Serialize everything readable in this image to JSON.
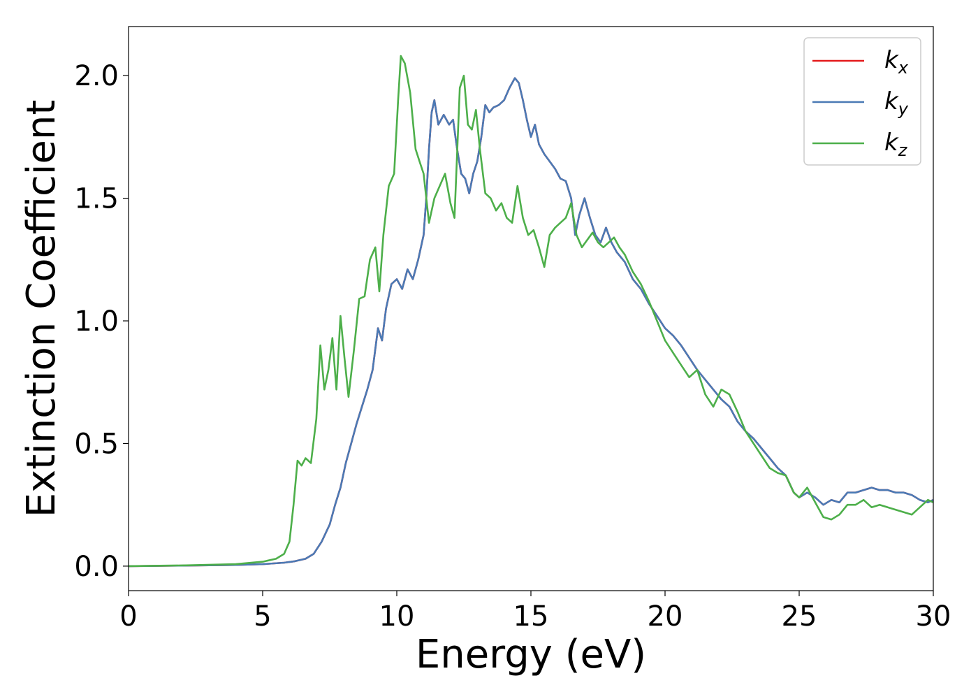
{
  "chart_data": {
    "type": "line",
    "xlabel": "Energy (eV)",
    "ylabel": "Extinction Coefficient",
    "xlim": [
      0,
      30
    ],
    "ylim": [
      -0.1,
      2.2
    ],
    "xticks": [
      "0",
      "5",
      "10",
      "15",
      "20",
      "25",
      "30"
    ],
    "yticks": [
      "0.0",
      "0.5",
      "1.0",
      "1.5",
      "2.0"
    ],
    "grid": false,
    "legend_position": "top-right",
    "series": [
      {
        "name": "k_x",
        "label_main": "k",
        "label_sub": "x",
        "color": "#e41a1c",
        "x": [
          0,
          2,
          4,
          5,
          5.8,
          6.2,
          6.6,
          6.9,
          7.2,
          7.5,
          7.7,
          7.9,
          8.1,
          8.3,
          8.5,
          8.7,
          8.9,
          9.1,
          9.3,
          9.45,
          9.6,
          9.8,
          10.0,
          10.2,
          10.4,
          10.6,
          10.8,
          11.0,
          11.1,
          11.2,
          11.3,
          11.4,
          11.55,
          11.75,
          11.95,
          12.1,
          12.25,
          12.4,
          12.55,
          12.7,
          12.85,
          13.0,
          13.15,
          13.3,
          13.45,
          13.6,
          13.8,
          14.0,
          14.2,
          14.4,
          14.55,
          14.7,
          14.85,
          15.0,
          15.15,
          15.3,
          15.5,
          15.7,
          15.9,
          16.1,
          16.3,
          16.5,
          16.65,
          16.8,
          17.0,
          17.2,
          17.4,
          17.6,
          17.8,
          18.0,
          18.2,
          18.5,
          18.8,
          19.1,
          19.4,
          19.7,
          20.0,
          20.3,
          20.6,
          20.9,
          21.2,
          21.5,
          21.8,
          22.1,
          22.4,
          22.7,
          23.0,
          23.3,
          23.6,
          23.9,
          24.2,
          24.5,
          24.8,
          25.0,
          25.3,
          25.6,
          25.9,
          26.2,
          26.5,
          26.8,
          27.1,
          27.4,
          27.7,
          28.0,
          28.3,
          28.6,
          28.9,
          29.2,
          29.5,
          29.8,
          30.0
        ],
        "y": [
          0.0,
          0.002,
          0.005,
          0.008,
          0.014,
          0.02,
          0.03,
          0.05,
          0.1,
          0.17,
          0.25,
          0.32,
          0.42,
          0.5,
          0.58,
          0.65,
          0.72,
          0.8,
          0.97,
          0.92,
          1.05,
          1.15,
          1.17,
          1.13,
          1.21,
          1.17,
          1.25,
          1.35,
          1.5,
          1.7,
          1.85,
          1.9,
          1.8,
          1.84,
          1.8,
          1.82,
          1.7,
          1.6,
          1.58,
          1.52,
          1.6,
          1.65,
          1.75,
          1.88,
          1.85,
          1.87,
          1.88,
          1.9,
          1.95,
          1.99,
          1.97,
          1.9,
          1.82,
          1.75,
          1.8,
          1.72,
          1.68,
          1.65,
          1.62,
          1.58,
          1.57,
          1.5,
          1.35,
          1.43,
          1.5,
          1.42,
          1.35,
          1.32,
          1.38,
          1.32,
          1.28,
          1.24,
          1.17,
          1.13,
          1.07,
          1.02,
          0.97,
          0.94,
          0.9,
          0.85,
          0.8,
          0.76,
          0.72,
          0.68,
          0.65,
          0.59,
          0.55,
          0.52,
          0.48,
          0.44,
          0.4,
          0.37,
          0.3,
          0.28,
          0.3,
          0.28,
          0.25,
          0.27,
          0.26,
          0.3,
          0.3,
          0.31,
          0.32,
          0.31,
          0.31,
          0.3,
          0.3,
          0.29,
          0.27,
          0.26,
          0.27
        ]
      },
      {
        "name": "k_y",
        "label_main": "k",
        "label_sub": "y",
        "color": "#4a7ab5",
        "x": [
          0,
          2,
          4,
          5,
          5.8,
          6.2,
          6.6,
          6.9,
          7.2,
          7.5,
          7.7,
          7.9,
          8.1,
          8.3,
          8.5,
          8.7,
          8.9,
          9.1,
          9.3,
          9.45,
          9.6,
          9.8,
          10.0,
          10.2,
          10.4,
          10.6,
          10.8,
          11.0,
          11.1,
          11.2,
          11.3,
          11.4,
          11.55,
          11.75,
          11.95,
          12.1,
          12.25,
          12.4,
          12.55,
          12.7,
          12.85,
          13.0,
          13.15,
          13.3,
          13.45,
          13.6,
          13.8,
          14.0,
          14.2,
          14.4,
          14.55,
          14.7,
          14.85,
          15.0,
          15.15,
          15.3,
          15.5,
          15.7,
          15.9,
          16.1,
          16.3,
          16.5,
          16.65,
          16.8,
          17.0,
          17.2,
          17.4,
          17.6,
          17.8,
          18.0,
          18.2,
          18.5,
          18.8,
          19.1,
          19.4,
          19.7,
          20.0,
          20.3,
          20.6,
          20.9,
          21.2,
          21.5,
          21.8,
          22.1,
          22.4,
          22.7,
          23.0,
          23.3,
          23.6,
          23.9,
          24.2,
          24.5,
          24.8,
          25.0,
          25.3,
          25.6,
          25.9,
          26.2,
          26.5,
          26.8,
          27.1,
          27.4,
          27.7,
          28.0,
          28.3,
          28.6,
          28.9,
          29.2,
          29.5,
          29.8,
          30.0
        ],
        "y": [
          0.0,
          0.002,
          0.005,
          0.008,
          0.014,
          0.02,
          0.03,
          0.05,
          0.1,
          0.17,
          0.25,
          0.32,
          0.42,
          0.5,
          0.58,
          0.65,
          0.72,
          0.8,
          0.97,
          0.92,
          1.05,
          1.15,
          1.17,
          1.13,
          1.21,
          1.17,
          1.25,
          1.35,
          1.5,
          1.7,
          1.85,
          1.9,
          1.8,
          1.84,
          1.8,
          1.82,
          1.7,
          1.6,
          1.58,
          1.52,
          1.6,
          1.65,
          1.75,
          1.88,
          1.85,
          1.87,
          1.88,
          1.9,
          1.95,
          1.99,
          1.97,
          1.9,
          1.82,
          1.75,
          1.8,
          1.72,
          1.68,
          1.65,
          1.62,
          1.58,
          1.57,
          1.5,
          1.35,
          1.43,
          1.5,
          1.42,
          1.35,
          1.32,
          1.38,
          1.32,
          1.28,
          1.24,
          1.17,
          1.13,
          1.07,
          1.02,
          0.97,
          0.94,
          0.9,
          0.85,
          0.8,
          0.76,
          0.72,
          0.68,
          0.65,
          0.59,
          0.55,
          0.52,
          0.48,
          0.44,
          0.4,
          0.37,
          0.3,
          0.28,
          0.3,
          0.28,
          0.25,
          0.27,
          0.26,
          0.3,
          0.3,
          0.31,
          0.32,
          0.31,
          0.31,
          0.3,
          0.3,
          0.29,
          0.27,
          0.26,
          0.27
        ]
      },
      {
        "name": "k_z",
        "label_main": "k",
        "label_sub": "z",
        "color": "#4daf4a",
        "x": [
          0,
          2,
          4,
          5,
          5.5,
          5.8,
          6.0,
          6.15,
          6.3,
          6.45,
          6.6,
          6.8,
          7.0,
          7.15,
          7.3,
          7.45,
          7.6,
          7.75,
          7.9,
          8.05,
          8.2,
          8.4,
          8.6,
          8.8,
          9.0,
          9.2,
          9.35,
          9.5,
          9.7,
          9.9,
          10.05,
          10.15,
          10.3,
          10.5,
          10.7,
          10.85,
          11.0,
          11.2,
          11.4,
          11.6,
          11.8,
          12.0,
          12.15,
          12.35,
          12.5,
          12.65,
          12.8,
          12.95,
          13.1,
          13.3,
          13.5,
          13.7,
          13.9,
          14.1,
          14.3,
          14.5,
          14.7,
          14.9,
          15.1,
          15.3,
          15.5,
          15.7,
          15.9,
          16.1,
          16.3,
          16.5,
          16.7,
          16.9,
          17.1,
          17.3,
          17.5,
          17.7,
          17.9,
          18.1,
          18.3,
          18.5,
          18.8,
          19.1,
          19.4,
          19.7,
          20.0,
          20.3,
          20.6,
          20.9,
          21.2,
          21.5,
          21.8,
          22.1,
          22.4,
          22.7,
          23.0,
          23.3,
          23.6,
          23.9,
          24.2,
          24.5,
          24.8,
          25.0,
          25.3,
          25.6,
          25.9,
          26.2,
          26.5,
          26.8,
          27.1,
          27.4,
          27.7,
          28.0,
          28.3,
          28.6,
          28.9,
          29.2,
          29.5,
          29.8,
          30.0
        ],
        "y": [
          0.0,
          0.003,
          0.008,
          0.018,
          0.03,
          0.05,
          0.1,
          0.25,
          0.43,
          0.41,
          0.44,
          0.42,
          0.6,
          0.9,
          0.72,
          0.8,
          0.93,
          0.72,
          1.02,
          0.85,
          0.69,
          0.88,
          1.09,
          1.1,
          1.25,
          1.3,
          1.12,
          1.35,
          1.55,
          1.6,
          1.9,
          2.08,
          2.05,
          1.93,
          1.7,
          1.65,
          1.6,
          1.4,
          1.5,
          1.55,
          1.6,
          1.48,
          1.42,
          1.95,
          2.0,
          1.8,
          1.78,
          1.86,
          1.7,
          1.52,
          1.5,
          1.45,
          1.48,
          1.42,
          1.4,
          1.55,
          1.42,
          1.35,
          1.37,
          1.3,
          1.22,
          1.35,
          1.38,
          1.4,
          1.42,
          1.48,
          1.35,
          1.3,
          1.33,
          1.36,
          1.32,
          1.3,
          1.32,
          1.34,
          1.3,
          1.27,
          1.2,
          1.15,
          1.08,
          1.0,
          0.92,
          0.87,
          0.82,
          0.77,
          0.8,
          0.7,
          0.65,
          0.72,
          0.7,
          0.63,
          0.55,
          0.5,
          0.45,
          0.4,
          0.38,
          0.37,
          0.3,
          0.28,
          0.32,
          0.26,
          0.2,
          0.19,
          0.21,
          0.25,
          0.25,
          0.27,
          0.24,
          0.25,
          0.24,
          0.23,
          0.22,
          0.21,
          0.24,
          0.27,
          0.26
        ]
      }
    ]
  }
}
